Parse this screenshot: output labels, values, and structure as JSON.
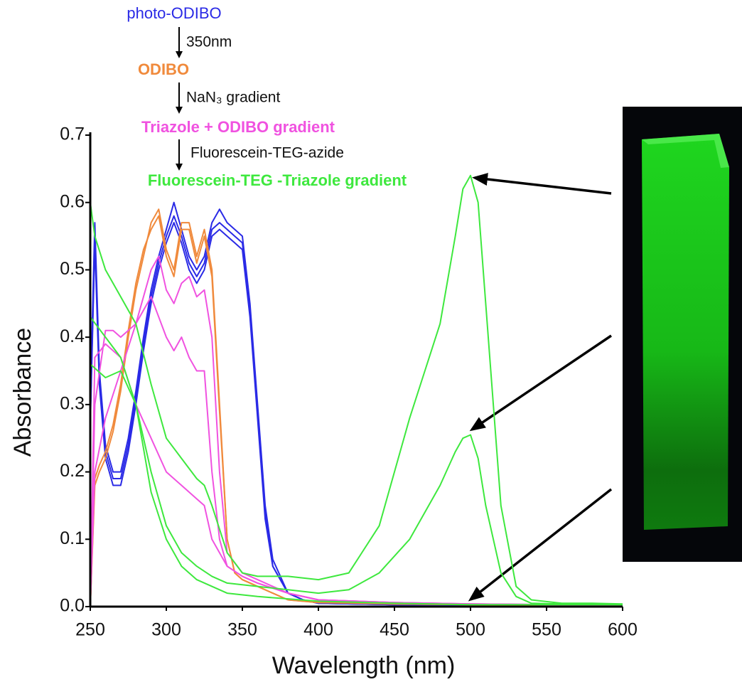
{
  "chart_data": {
    "type": "line",
    "xlabel": "Wavelength (nm)",
    "ylabel": "Absorbance",
    "xlim": [
      250,
      600
    ],
    "ylim": [
      0,
      0.7
    ],
    "xticks": [
      250,
      300,
      350,
      400,
      450,
      500,
      550,
      600
    ],
    "yticks": [
      {
        "value": 0,
        "label": "0.0"
      },
      0.1,
      0.2,
      0.3,
      0.4,
      0.5,
      0.6,
      0.7
    ],
    "steps": [
      "350nm",
      "NaN₃ gradient",
      "Fluorescein-TEG-azide"
    ],
    "series": [
      {
        "name": "photo-ODIBO",
        "color": "#2a2ae6",
        "curves": [
          {
            "x": [
              250,
              253,
              256,
              260,
              265,
              270,
              275,
              280,
              285,
              290,
              295,
              300,
              305,
              310,
              315,
              320,
              325,
              330,
              335,
              340,
              345,
              350,
              355,
              360,
              365,
              370,
              380,
              390,
              400,
              450,
              500,
              550,
              600
            ],
            "values": [
              0.3,
              0.57,
              0.35,
              0.24,
              0.2,
              0.2,
              0.25,
              0.32,
              0.4,
              0.47,
              0.52,
              0.56,
              0.6,
              0.56,
              0.52,
              0.5,
              0.52,
              0.57,
              0.59,
              0.57,
              0.56,
              0.55,
              0.45,
              0.3,
              0.15,
              0.07,
              0.02,
              0.01,
              0.005,
              0.003,
              0.003,
              0.002,
              0.002
            ]
          },
          {
            "x": [
              250,
              253,
              256,
              260,
              265,
              270,
              275,
              280,
              285,
              290,
              295,
              300,
              305,
              310,
              315,
              320,
              325,
              330,
              335,
              340,
              345,
              350,
              355,
              360,
              365,
              370,
              380,
              390,
              400,
              450,
              500,
              550,
              600
            ],
            "values": [
              0.28,
              0.55,
              0.34,
              0.23,
              0.19,
              0.19,
              0.24,
              0.31,
              0.39,
              0.46,
              0.51,
              0.55,
              0.58,
              0.55,
              0.51,
              0.49,
              0.51,
              0.56,
              0.57,
              0.56,
              0.55,
              0.54,
              0.44,
              0.29,
              0.14,
              0.06,
              0.02,
              0.01,
              0.005,
              0.003,
              0.003,
              0.002,
              0.002
            ]
          },
          {
            "x": [
              250,
              253,
              256,
              260,
              265,
              270,
              275,
              280,
              285,
              290,
              295,
              300,
              305,
              310,
              315,
              320,
              325,
              330,
              335,
              340,
              345,
              350,
              355,
              360,
              365,
              370,
              380,
              390,
              400,
              450,
              500,
              550,
              600
            ],
            "values": [
              0.27,
              0.54,
              0.33,
              0.22,
              0.18,
              0.18,
              0.23,
              0.3,
              0.38,
              0.45,
              0.5,
              0.54,
              0.57,
              0.54,
              0.5,
              0.48,
              0.5,
              0.55,
              0.56,
              0.55,
              0.54,
              0.53,
              0.43,
              0.28,
              0.13,
              0.06,
              0.02,
              0.01,
              0.005,
              0.003,
              0.003,
              0.002,
              0.002
            ]
          }
        ]
      },
      {
        "name": "ODIBO",
        "color": "#f08a3c",
        "curves": [
          {
            "x": [
              250,
              253,
              256,
              260,
              265,
              270,
              275,
              280,
              285,
              290,
              295,
              300,
              305,
              310,
              315,
              320,
              325,
              330,
              335,
              340,
              345,
              350,
              360,
              370,
              380,
              400,
              450,
              500,
              550,
              600
            ],
            "values": [
              0.0,
              0.18,
              0.2,
              0.22,
              0.26,
              0.32,
              0.4,
              0.47,
              0.52,
              0.57,
              0.59,
              0.53,
              0.5,
              0.57,
              0.57,
              0.52,
              0.56,
              0.5,
              0.3,
              0.1,
              0.05,
              0.04,
              0.03,
              0.02,
              0.01,
              0.006,
              0.004,
              0.003,
              0.002,
              0.002
            ]
          },
          {
            "x": [
              250,
              253,
              256,
              260,
              265,
              270,
              275,
              280,
              285,
              290,
              295,
              300,
              305,
              310,
              315,
              320,
              325,
              330,
              335,
              340,
              345,
              350,
              360,
              370,
              380,
              400,
              450,
              500,
              550,
              600
            ],
            "values": [
              0.0,
              0.19,
              0.21,
              0.23,
              0.27,
              0.33,
              0.41,
              0.48,
              0.53,
              0.56,
              0.58,
              0.52,
              0.49,
              0.56,
              0.56,
              0.51,
              0.55,
              0.49,
              0.29,
              0.1,
              0.05,
              0.04,
              0.03,
              0.02,
              0.01,
              0.006,
              0.004,
              0.003,
              0.002,
              0.002
            ]
          }
        ]
      },
      {
        "name": "Triazole + ODIBO gradient",
        "color": "#f052e0",
        "curves": [
          {
            "x": [
              250,
              253,
              260,
              270,
              280,
              290,
              295,
              300,
              305,
              310,
              315,
              320,
              325,
              330,
              335,
              340,
              350,
              360,
              380,
              400,
              450,
              500,
              550,
              600
            ],
            "values": [
              0.0,
              0.2,
              0.28,
              0.35,
              0.42,
              0.5,
              0.52,
              0.47,
              0.45,
              0.48,
              0.49,
              0.46,
              0.47,
              0.4,
              0.2,
              0.08,
              0.05,
              0.04,
              0.02,
              0.01,
              0.006,
              0.004,
              0.003,
              0.003
            ]
          },
          {
            "x": [
              250,
              253,
              260,
              265,
              270,
              280,
              290,
              295,
              300,
              305,
              310,
              315,
              320,
              325,
              330,
              335,
              340,
              350,
              360,
              380,
              400,
              450,
              500,
              550,
              600
            ],
            "values": [
              0.0,
              0.3,
              0.41,
              0.41,
              0.4,
              0.42,
              0.46,
              0.43,
              0.4,
              0.38,
              0.4,
              0.37,
              0.35,
              0.35,
              0.2,
              0.1,
              0.06,
              0.045,
              0.035,
              0.02,
              0.01,
              0.006,
              0.004,
              0.003,
              0.003
            ]
          },
          {
            "x": [
              250,
              253,
              260,
              270,
              280,
              290,
              300,
              310,
              320,
              325,
              330,
              340,
              350,
              360,
              380,
              400,
              450,
              500,
              550,
              600
            ],
            "values": [
              0.0,
              0.37,
              0.39,
              0.37,
              0.3,
              0.25,
              0.2,
              0.18,
              0.16,
              0.15,
              0.1,
              0.06,
              0.045,
              0.035,
              0.02,
              0.01,
              0.006,
              0.004,
              0.003,
              0.003
            ]
          }
        ]
      },
      {
        "name": "Fluorescein-TEG -Triazole gradient",
        "color": "#3ee83e",
        "curves": [
          {
            "x": [
              250,
              253,
              260,
              270,
              280,
              290,
              300,
              310,
              320,
              325,
              330,
              340,
              350,
              360,
              380,
              400,
              420,
              440,
              460,
              470,
              480,
              490,
              495,
              500,
              505,
              510,
              520,
              530,
              540,
              560,
              580,
              600
            ],
            "values": [
              0.6,
              0.55,
              0.5,
              0.46,
              0.42,
              0.33,
              0.25,
              0.22,
              0.19,
              0.18,
              0.15,
              0.08,
              0.05,
              0.045,
              0.045,
              0.04,
              0.05,
              0.12,
              0.28,
              0.35,
              0.42,
              0.55,
              0.62,
              0.64,
              0.6,
              0.45,
              0.15,
              0.03,
              0.01,
              0.005,
              0.005,
              0.004
            ]
          },
          {
            "x": [
              250,
              260,
              270,
              280,
              290,
              300,
              310,
              320,
              330,
              340,
              360,
              380,
              400,
              420,
              440,
              460,
              470,
              480,
              490,
              495,
              500,
              505,
              510,
              520,
              530,
              540,
              560,
              600
            ],
            "values": [
              0.43,
              0.4,
              0.37,
              0.3,
              0.2,
              0.12,
              0.08,
              0.06,
              0.045,
              0.035,
              0.03,
              0.025,
              0.02,
              0.025,
              0.05,
              0.1,
              0.14,
              0.18,
              0.23,
              0.25,
              0.255,
              0.22,
              0.15,
              0.05,
              0.015,
              0.005,
              0.004,
              0.003
            ]
          },
          {
            "x": [
              250,
              260,
              270,
              280,
              290,
              300,
              310,
              320,
              340,
              360,
              400,
              450,
              500,
              550,
              600
            ],
            "values": [
              0.36,
              0.34,
              0.35,
              0.3,
              0.17,
              0.1,
              0.06,
              0.04,
              0.02,
              0.015,
              0.008,
              0.005,
              0.003,
              0.003,
              0.003
            ]
          }
        ]
      }
    ]
  }
}
